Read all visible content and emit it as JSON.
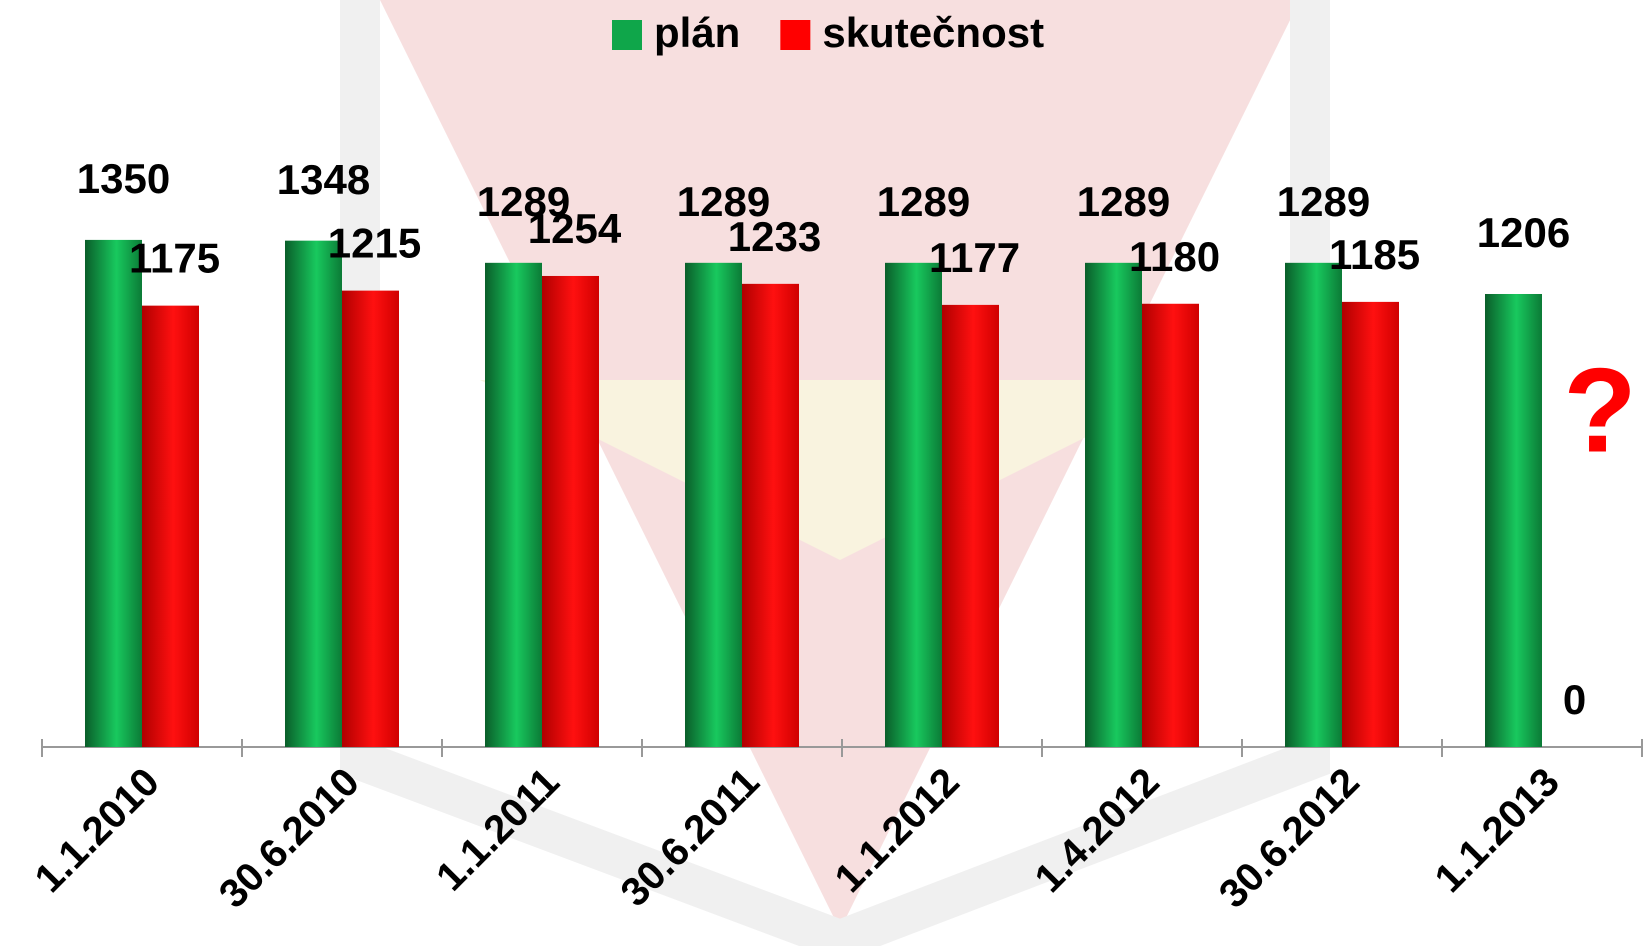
{
  "chart_data": {
    "type": "bar",
    "categories": [
      "1.1.2010",
      "30.6.2010",
      "1.1.2011",
      "30.6.2011",
      "1.1.2012",
      "1.4.2012",
      "30.6.2012",
      "1.1.2013"
    ],
    "series": [
      {
        "name": "plán",
        "color": "#0fa64a",
        "values": [
          1350,
          1348,
          1289,
          1289,
          1289,
          1289,
          1289,
          1206
        ]
      },
      {
        "name": "skutečnost",
        "color": "#ff0000",
        "values": [
          1175,
          1215,
          1254,
          1233,
          1177,
          1180,
          1185,
          0
        ]
      }
    ],
    "ylim": [
      0,
      1600
    ],
    "annotation": "?",
    "legend": "top"
  }
}
